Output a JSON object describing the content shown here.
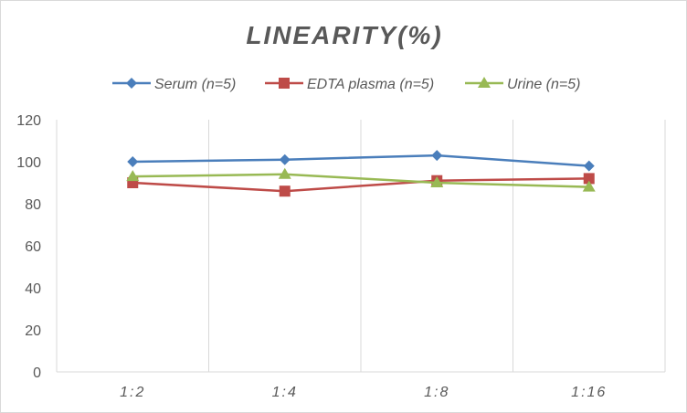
{
  "chart_data": {
    "type": "line",
    "title": "LINEARITY(%)",
    "categories": [
      "1:2",
      "1:4",
      "1:8",
      "1:16"
    ],
    "ylim": [
      0,
      120
    ],
    "yticks": [
      0,
      20,
      40,
      60,
      80,
      100,
      120
    ],
    "grid": "vertical",
    "legend_position": "top",
    "series": [
      {
        "name": "Serum (n=5)",
        "values": [
          100,
          101,
          103,
          98
        ],
        "color": "#4a7ebb",
        "marker": "diamond"
      },
      {
        "name": "EDTA plasma (n=5)",
        "values": [
          90,
          86,
          91,
          92
        ],
        "color": "#be4b48",
        "marker": "square"
      },
      {
        "name": "Urine (n=5)",
        "values": [
          93,
          94,
          90,
          88
        ],
        "color": "#98b954",
        "marker": "triangle"
      }
    ]
  }
}
